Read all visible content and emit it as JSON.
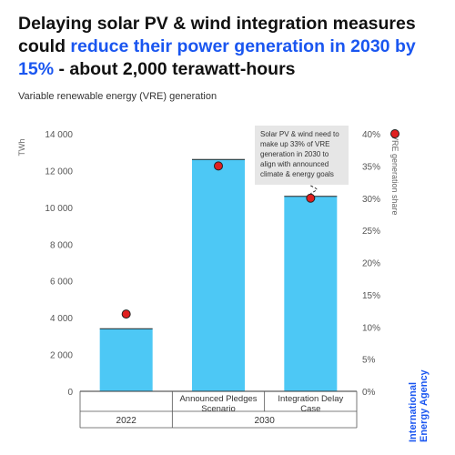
{
  "headline": {
    "prefix": "Delaying solar PV & wind integration measures could ",
    "highlight": "reduce their power generation in 2030 by 15%",
    "suffix": " - about 2,000 terawatt-hours"
  },
  "subtitle": "Variable renewable energy (VRE) generation",
  "brand": {
    "line1": "International",
    "line2": "Energy Agency"
  },
  "colors": {
    "bar": "#4dc8f5",
    "marker": "#e02020",
    "accent": "#1a56f0"
  },
  "chart_data": {
    "type": "bar",
    "categories": [
      "",
      "Announced Pledges Scenario",
      "Integration Delay Case"
    ],
    "category_lines": [
      [
        ""
      ],
      [
        "Announced Pledges",
        "Scenario"
      ],
      [
        "Integration Delay",
        "Case"
      ]
    ],
    "groups": [
      {
        "label": "2022",
        "categories": [
          0
        ]
      },
      {
        "label": "2030",
        "categories": [
          1,
          2
        ]
      }
    ],
    "series": [
      {
        "values": [
          3400,
          12600,
          10600
        ],
        "axis": "left"
      },
      {
        "values": [
          12,
          35,
          30
        ],
        "axis": "right",
        "type": "scatter"
      }
    ],
    "ylabel": "TWh",
    "ylim": [
      0,
      14000
    ],
    "yticks": [
      0,
      2000,
      4000,
      6000,
      8000,
      10000,
      12000,
      14000
    ],
    "ytick_labels": [
      "0",
      "2 000",
      "4 000",
      "6 000",
      "8 000",
      "10 000",
      "12 000",
      "14 000"
    ],
    "y2label": "VRE generation share",
    "y2lim": [
      0,
      40
    ],
    "y2ticks": [
      0,
      5,
      10,
      15,
      20,
      25,
      30,
      35,
      40
    ],
    "y2tick_labels": [
      "0%",
      "5%",
      "10%",
      "15%",
      "20%",
      "25%",
      "30%",
      "35%",
      "40%"
    ],
    "annotation": {
      "lines": [
        "Solar PV & wind need to",
        "make up 33% of VRE",
        "generation in 2030 to",
        "align with announced",
        "climate & energy goals"
      ],
      "target_category": 2
    },
    "grid": false
  }
}
